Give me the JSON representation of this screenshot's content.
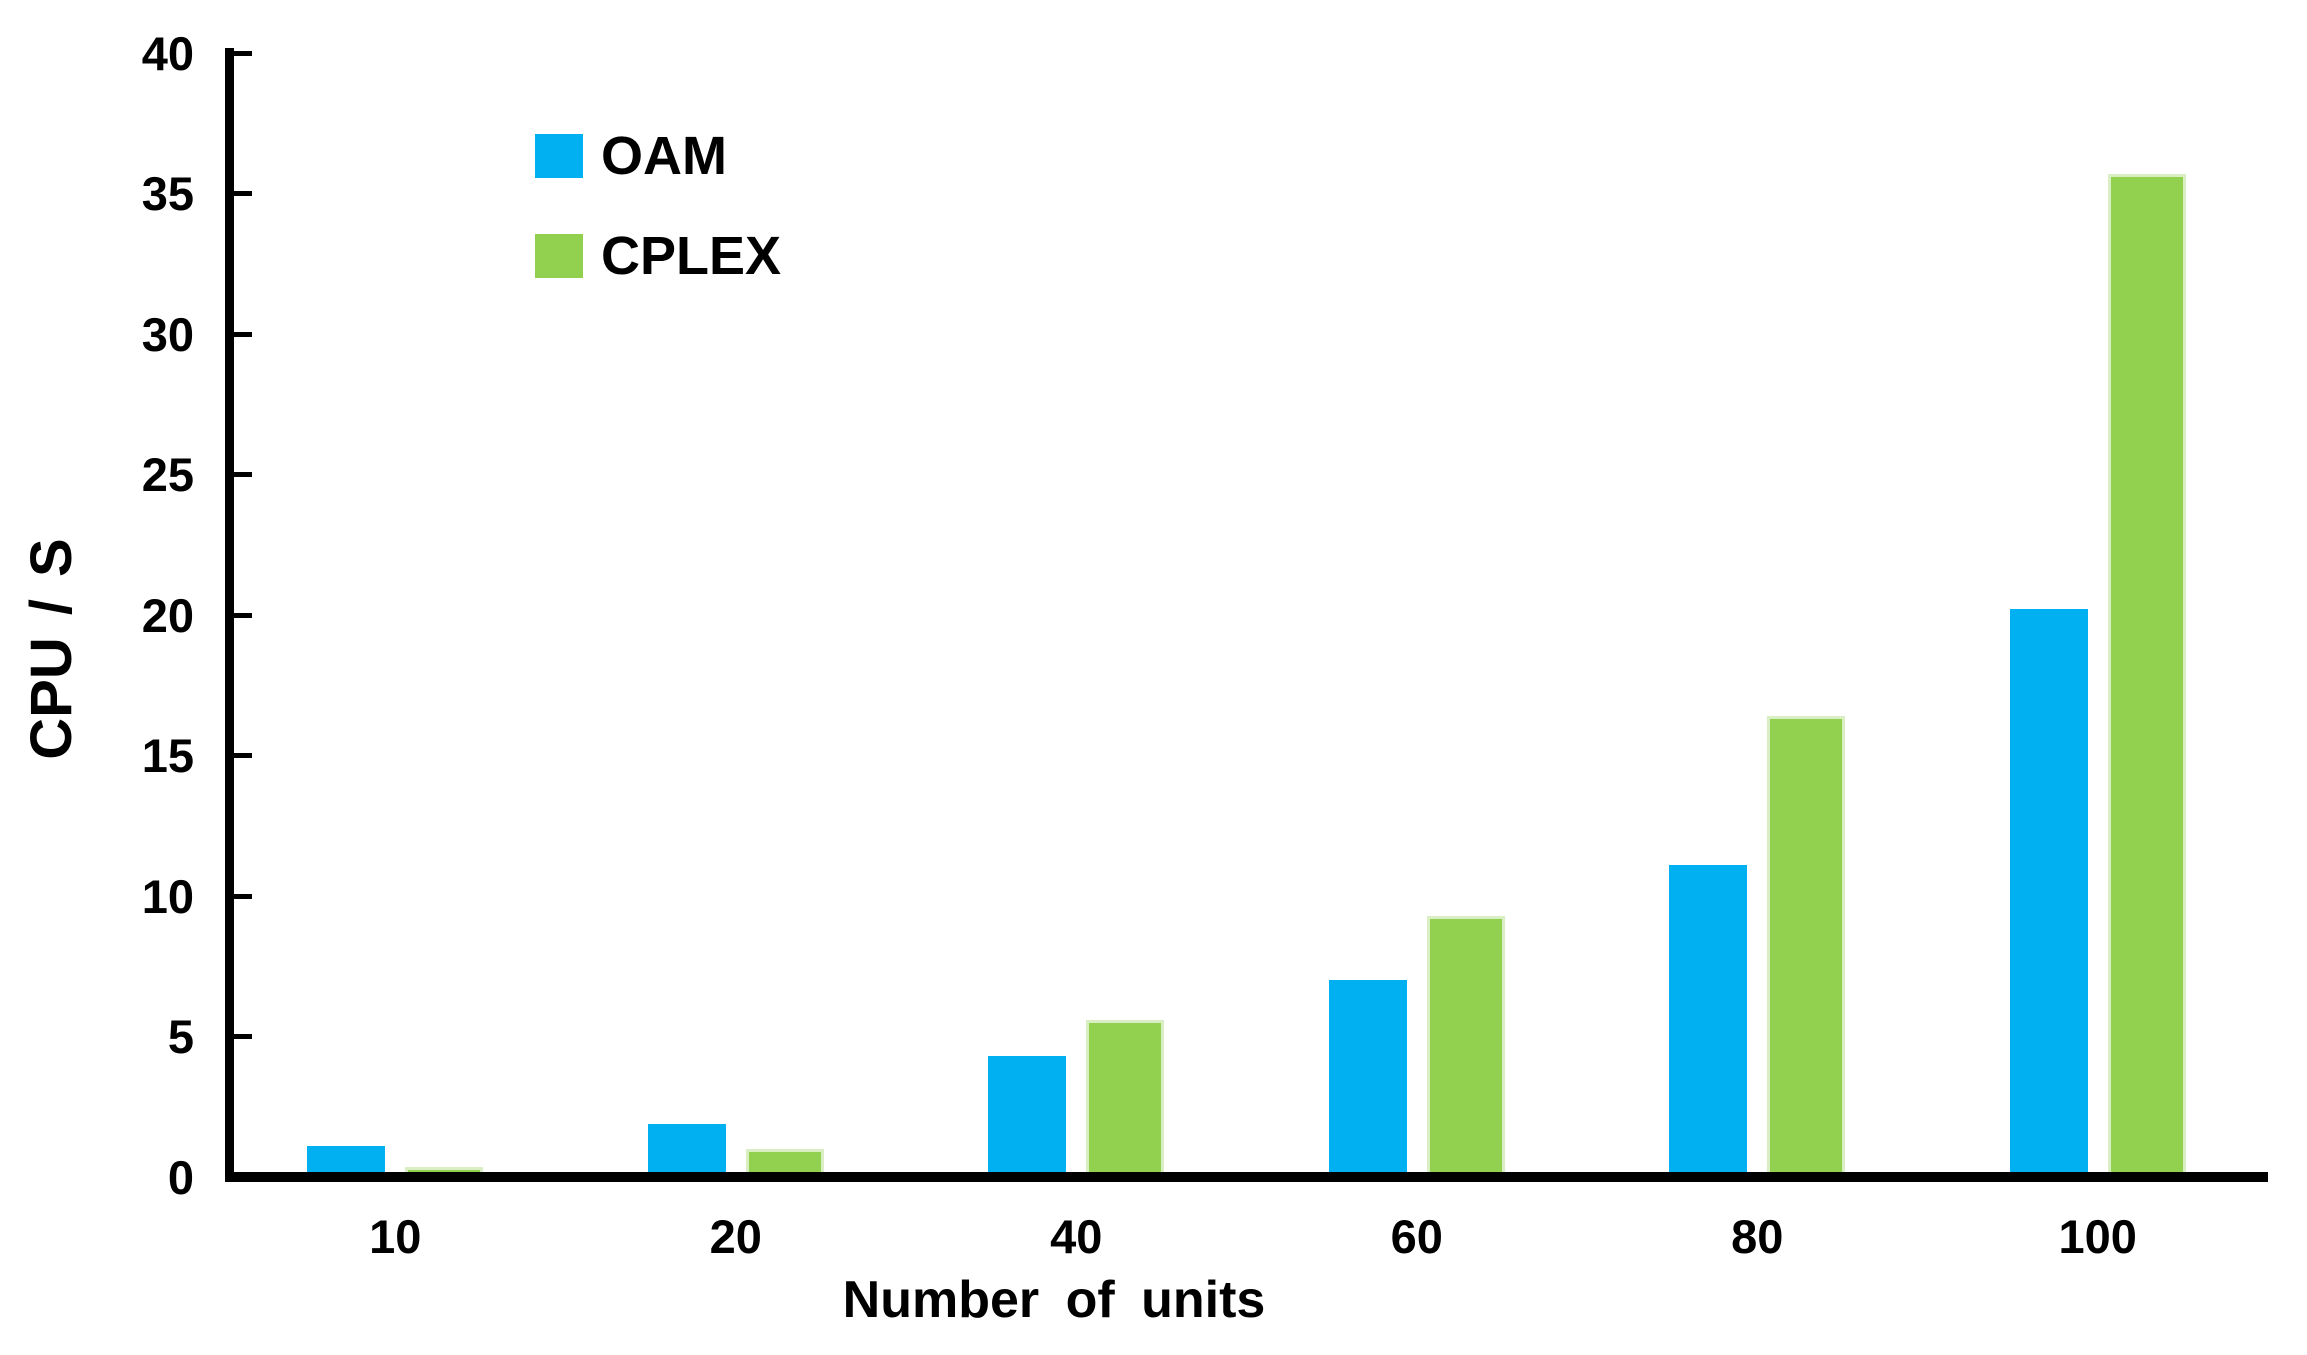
{
  "figure": {
    "background_color": "#ffffff",
    "axis_color": "#000000",
    "text_color": "#000000"
  },
  "chart_data": {
    "type": "bar",
    "title": "",
    "xlabel": "Number of units",
    "ylabel": "CPU / S",
    "categories": [
      "10",
      "20",
      "40",
      "60",
      "80",
      "100"
    ],
    "series": [
      {
        "name": "OAM",
        "color": "#00B0F0",
        "values": [
          1.1,
          1.9,
          4.3,
          7.0,
          11.1,
          20.2
        ]
      },
      {
        "name": "CPLEX",
        "color": "#92D050",
        "values": [
          0.35,
          1.0,
          5.6,
          9.3,
          16.4,
          35.7
        ]
      }
    ],
    "ylim": [
      0,
      40
    ],
    "yticks": [
      0,
      5,
      10,
      15,
      20,
      25,
      30,
      35,
      40
    ],
    "grid": false,
    "legend_position": "upper-left"
  }
}
